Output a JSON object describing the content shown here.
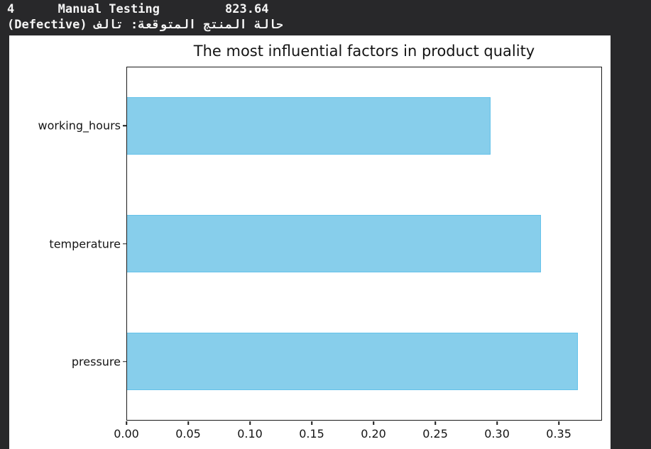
{
  "terminal": {
    "line1": "4      Manual Testing         823.64",
    "line2": "حالة المنتج المتوقعة: تالف (Defective)"
  },
  "chart_data": {
    "type": "bar",
    "orientation": "horizontal",
    "title": "The most influential factors in product quality",
    "categories": [
      "working_hours",
      "temperature",
      "pressure"
    ],
    "values": [
      0.295,
      0.336,
      0.366
    ],
    "xlabel": "",
    "ylabel": "",
    "xlim": [
      0,
      0.385
    ],
    "xticks": [
      0,
      0.05,
      0.1,
      0.15,
      0.2,
      0.25,
      0.3,
      0.35
    ],
    "xtick_format_decimals": 2,
    "grid": false,
    "legend": "none",
    "bar_color": "#87ceeb",
    "bar_edge_color": "#64c2ea",
    "figure_background": "#ffffff"
  },
  "colors": {
    "terminal_background": "#28282a",
    "terminal_text": "#f5f5f5",
    "axes_line": "#1a1a1a"
  }
}
